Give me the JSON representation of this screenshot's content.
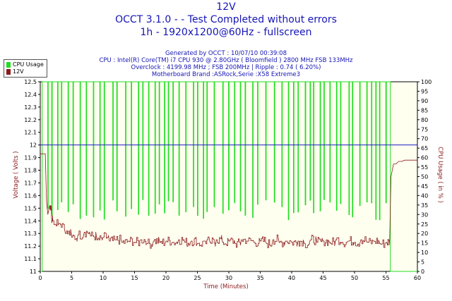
{
  "header": {
    "title": "12V",
    "subtitle1": "OCCT 3.1.0 -  - Test Completed without errors",
    "subtitle2": "1h - 1920x1200@60Hz - fullscreen",
    "generated": "Generated by OCCT : 10/07/10 00:39:08",
    "cpu": "CPU : Intel(R) Core(TM) i7 CPU 930 @ 2.80GHz ( Bloomfield ) 2800 MHz FSB 133MHz",
    "overclock": "Overclock : 4199.98 MHz ; FSB 200MHz | Ripple : 0.74 ( 6.20%)",
    "motherboard": "Motherboard Brand :ASRock,Serie :X58 Extreme3"
  },
  "colors": {
    "plot_bg": "#fffff0",
    "cpu_usage": "#22dd22",
    "voltage": "#8b1a1a",
    "reference_line": "#1c1cc4",
    "text_blue": "#1515b5",
    "axis_label": "#8b1a1a"
  },
  "chart_data": {
    "type": "line",
    "xlabel": "Time (Minutes)",
    "ylabel_left": "Voltage ( Volts )",
    "ylabel_right": "CPU Usage ( in % )",
    "xlim": [
      0,
      60
    ],
    "ylim_left": [
      11,
      12.5
    ],
    "ylim_right": [
      0,
      100
    ],
    "x_ticks": [
      0,
      5,
      10,
      15,
      20,
      25,
      30,
      35,
      40,
      45,
      50,
      55,
      60
    ],
    "y_ticks_left": [
      "11",
      "11.1",
      "11.2",
      "11.3",
      "11.4",
      "11.5",
      "11.6",
      "11.7",
      "11.8",
      "11.9",
      "12",
      "12.1",
      "12.2",
      "12.3",
      "12.4",
      "12.5"
    ],
    "y_ticks_right": [
      0,
      5,
      10,
      15,
      20,
      25,
      30,
      35,
      40,
      45,
      50,
      55,
      60,
      65,
      70,
      75,
      80,
      85,
      90,
      95,
      100
    ],
    "reference_line_y": 12,
    "grid": false,
    "legend_position": "top-left",
    "series": [
      {
        "name": "CPU Usage",
        "axis": "right",
        "test_start_min": 0.3,
        "test_end_min": 56,
        "baseline_before": 0,
        "baseline_after": 0,
        "high": 100,
        "low_min": 27,
        "low_max": 38,
        "note_dips": [
          {
            "x": 0.3,
            "y": 100
          },
          {
            "x": 55.7,
            "y": 0
          }
        ]
      },
      {
        "name": "12V",
        "axis": "left",
        "points": [
          [
            0,
            11.93
          ],
          [
            0.8,
            11.93
          ],
          [
            1.0,
            11.55
          ],
          [
            1.2,
            11.45
          ],
          [
            1.5,
            11.52
          ],
          [
            1.8,
            11.42
          ],
          [
            2.0,
            11.4
          ],
          [
            3,
            11.38
          ],
          [
            4,
            11.3
          ],
          [
            5,
            11.27
          ],
          [
            6,
            11.29
          ],
          [
            7,
            11.31
          ],
          [
            8,
            11.28
          ],
          [
            9,
            11.25
          ],
          [
            10,
            11.27
          ],
          [
            11,
            11.24
          ],
          [
            12,
            11.25
          ],
          [
            13,
            11.23
          ],
          [
            14,
            11.24
          ],
          [
            15,
            11.23
          ],
          [
            16,
            11.25
          ],
          [
            17,
            11.22
          ],
          [
            18,
            11.24
          ],
          [
            19,
            11.23
          ],
          [
            20,
            11.24
          ],
          [
            21,
            11.23
          ],
          [
            22,
            11.25
          ],
          [
            23,
            11.23
          ],
          [
            24,
            11.24
          ],
          [
            25,
            11.22
          ],
          [
            26,
            11.24
          ],
          [
            27,
            11.23
          ],
          [
            28,
            11.25
          ],
          [
            29,
            11.23
          ],
          [
            30,
            11.24
          ],
          [
            31,
            11.22
          ],
          [
            32,
            11.25
          ],
          [
            33,
            11.24
          ],
          [
            34,
            11.23
          ],
          [
            35,
            11.24
          ],
          [
            36,
            11.22
          ],
          [
            37,
            11.25
          ],
          [
            38,
            11.23
          ],
          [
            39,
            11.24
          ],
          [
            40,
            11.23
          ],
          [
            41,
            11.24
          ],
          [
            42,
            11.22
          ],
          [
            43,
            11.25
          ],
          [
            44,
            11.23
          ],
          [
            45,
            11.24
          ],
          [
            46,
            11.23
          ],
          [
            47,
            11.25
          ],
          [
            48,
            11.23
          ],
          [
            49,
            11.24
          ],
          [
            50,
            11.23
          ],
          [
            51,
            11.25
          ],
          [
            52,
            11.23
          ],
          [
            53,
            11.24
          ],
          [
            54,
            11.22
          ],
          [
            55,
            11.23
          ],
          [
            55.6,
            11.25
          ],
          [
            55.8,
            11.75
          ],
          [
            56.2,
            11.85
          ],
          [
            56.6,
            11.85
          ],
          [
            57,
            11.87
          ],
          [
            57.5,
            11.87
          ],
          [
            58,
            11.88
          ],
          [
            59,
            11.88
          ],
          [
            60,
            11.88
          ]
        ]
      }
    ]
  }
}
